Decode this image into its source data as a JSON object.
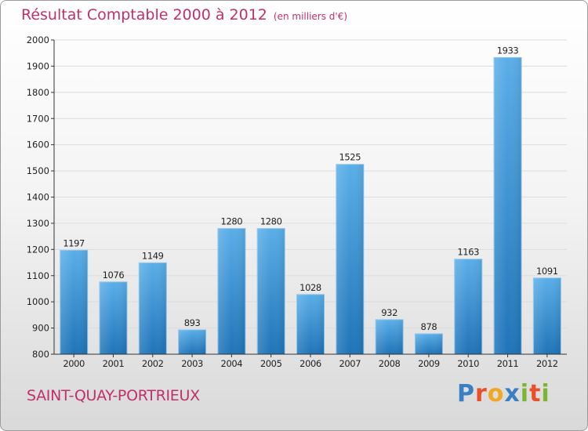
{
  "title": "Résultat Comptable 2000 à 2012",
  "subtitle": "(en milliers d'€)",
  "commune": "SAINT-QUAY-PORTRIEUX",
  "logo": {
    "text": "Proxiti",
    "letters": [
      {
        "ch": "P",
        "color": "#3a7fc4"
      },
      {
        "ch": "r",
        "color": "#e8502a"
      },
      {
        "ch": "o",
        "color": "#f2a623"
      },
      {
        "ch": "x",
        "color": "#3a7fc4"
      },
      {
        "ch": "i",
        "color": "#7ab632"
      },
      {
        "ch": "t",
        "color": "#e8502a"
      },
      {
        "ch": "i",
        "color": "#7ab632"
      }
    ]
  },
  "colors": {
    "bar_top": "#5aaee8",
    "bar_bottom": "#1f74b8",
    "title": "#c0306a",
    "axis": "#333333"
  },
  "chart_data": {
    "type": "bar",
    "title": "Résultat Comptable 2000 à 2012",
    "xlabel": "",
    "ylabel": "(en milliers d'€)",
    "ylim": [
      800,
      2000
    ],
    "yticks": [
      800,
      900,
      1000,
      1100,
      1200,
      1300,
      1400,
      1500,
      1600,
      1700,
      1800,
      1900,
      2000
    ],
    "categories": [
      "2000",
      "2001",
      "2002",
      "2003",
      "2004",
      "2005",
      "2006",
      "2007",
      "2008",
      "2009",
      "2010",
      "2011",
      "2012"
    ],
    "values": [
      1197,
      1076,
      1149,
      893,
      1280,
      1280,
      1028,
      1525,
      932,
      878,
      1163,
      1933,
      1091
    ],
    "grid": true,
    "legend": "none"
  }
}
